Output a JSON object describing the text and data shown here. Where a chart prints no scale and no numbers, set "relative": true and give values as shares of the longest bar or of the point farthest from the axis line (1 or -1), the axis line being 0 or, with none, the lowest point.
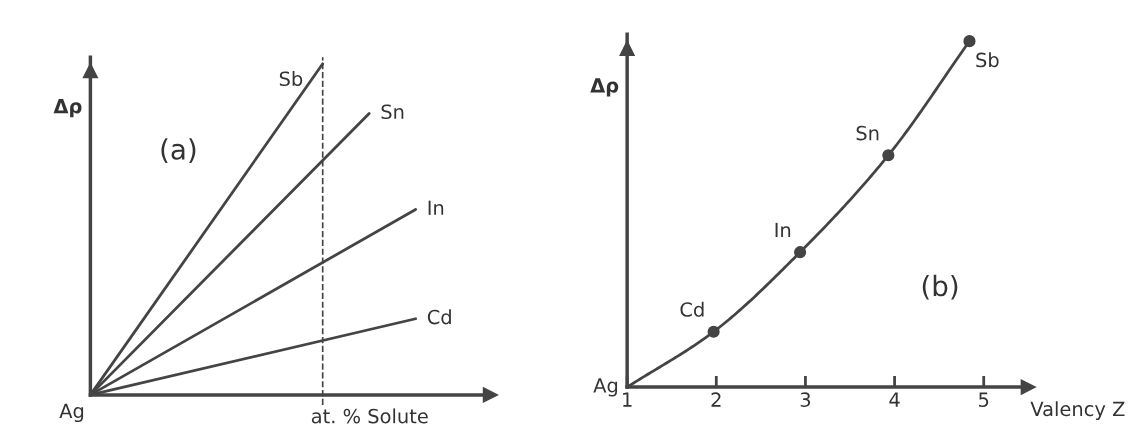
{
  "chart_data": [
    {
      "type": "line",
      "ylabel": "Δρ",
      "xlabel": "at. % Solute",
      "relative": true,
      "categories": [
        null,
        null,
        null,
        null,
        null,
        null,
        null,
        null
      ],
      "tick_labels": false,
      "grid": false,
      "legend": false,
      "marker": "none",
      "line_style": "solid",
      "series": [
        {
          "name": "Sb",
          "color": "#444444",
          "values": [
            0,
            null,
            null,
            null,
            null,
            1,
            null,
            null
          ]
        },
        {
          "name": "Sn",
          "color": "#444444",
          "values": [
            0,
            null,
            null,
            null,
            null,
            null,
            0.85,
            null
          ]
        },
        {
          "name": "In",
          "color": "#444444",
          "values": [
            0,
            null,
            null,
            null,
            null,
            null,
            null,
            0.56
          ]
        },
        {
          "name": "Cd",
          "color": "#444444",
          "values": [
            0,
            null,
            null,
            null,
            null,
            null,
            null,
            0.23
          ]
        }
      ],
      "annotations": [
        "Ag",
        "(a)"
      ]
    },
    {
      "type": "line",
      "ylabel": "Δρ",
      "xlabel": "Valency Z",
      "relative": true,
      "xlim": [
        1,
        5.5
      ],
      "xticks": [
        1,
        2,
        3,
        4,
        5
      ],
      "tick_labels": "x",
      "grid": false,
      "legend": false,
      "line_style": "solid",
      "series": [
        {
          "color": "#444444",
          "marker": "none",
          "x": [
            1,
            1.97,
            2.94,
            3.93,
            4.84
          ],
          "values": [
            0,
            0.16,
            0.39,
            0.67,
            1
          ]
        },
        {
          "type": "scatter",
          "color": "#444444",
          "marker": "circle",
          "x": [
            1.97,
            2.94,
            3.93,
            4.84
          ],
          "values": [
            0.16,
            0.39,
            0.67,
            1
          ]
        }
      ],
      "annotations": [
        {
          "text": "Ag",
          "x": 1,
          "y": 0
        },
        {
          "text": "Cd",
          "x": 1.97,
          "y": 0.16
        },
        {
          "text": "In",
          "x": 2.94,
          "y": 0.39
        },
        {
          "text": "Sn",
          "x": 3.93,
          "y": 0.67
        },
        {
          "text": "Sb",
          "x": 4.84,
          "y": 1
        },
        "(b)"
      ]
    }
  ]
}
